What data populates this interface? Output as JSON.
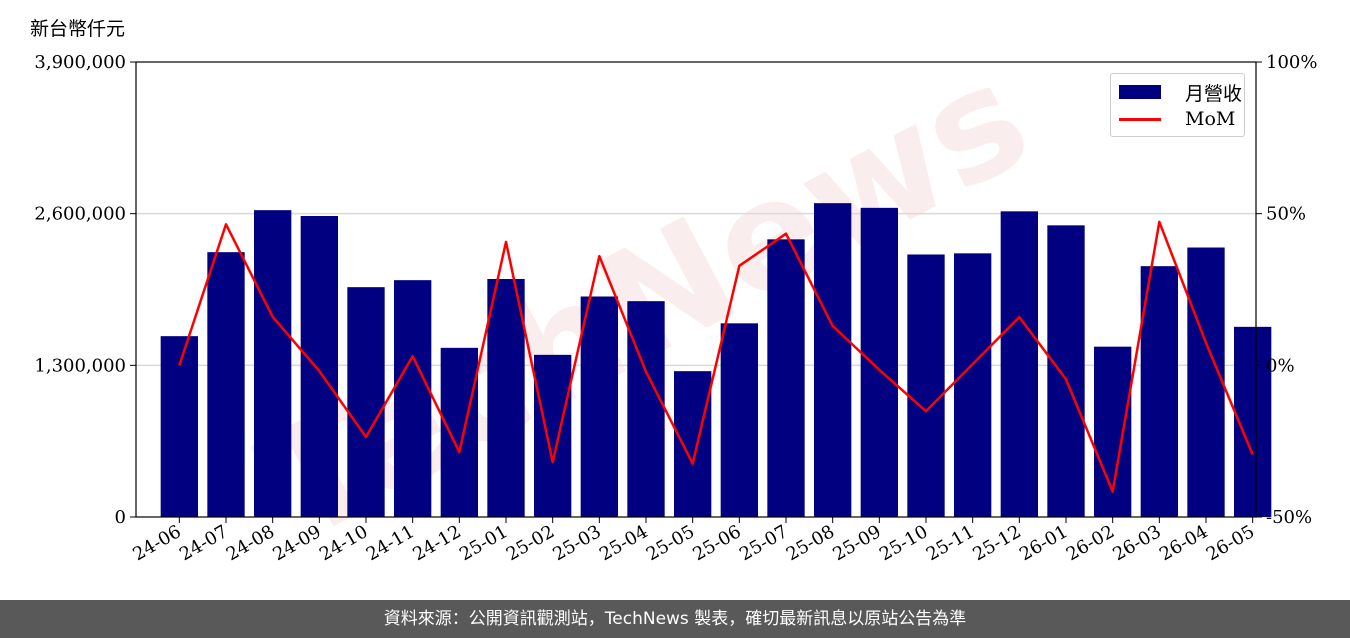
{
  "header": {
    "unit_label": "新台幣仟元"
  },
  "footer": {
    "text": "資料來源：公開資訊觀測站，TechNews 製表，確切最新訊息以原站公告為準"
  },
  "watermark": {
    "text": "TechNews"
  },
  "colors": {
    "bar": "#000080",
    "line": "#ff0000",
    "grid": "#d9d9d9"
  },
  "chart_data": {
    "type": "bar",
    "categories": [
      "24-06",
      "24-07",
      "24-08",
      "24-09",
      "24-10",
      "24-11",
      "24-12",
      "25-01",
      "25-02",
      "25-03",
      "25-04",
      "25-05",
      "25-06",
      "25-07",
      "25-08",
      "25-09",
      "25-10",
      "25-11",
      "25-12",
      "26-01",
      "26-02",
      "26-03",
      "26-04",
      "26-05"
    ],
    "series": [
      {
        "name": "月營收",
        "type": "bar",
        "axis": "left",
        "values": [
          1550000,
          2270000,
          2630000,
          2580000,
          1970000,
          2030000,
          1450000,
          2040000,
          1390000,
          1890000,
          1850000,
          1250000,
          1660000,
          2380000,
          2690000,
          2650000,
          2250000,
          2260000,
          2620000,
          2500000,
          1460000,
          2150000,
          2310000,
          1630000
        ]
      },
      {
        "name": "MoM",
        "type": "line",
        "axis": "right",
        "values": [
          0,
          46.5,
          16.0,
          -1.9,
          -23.6,
          3.0,
          -28.6,
          40.7,
          -31.9,
          36.0,
          -2.1,
          -32.4,
          32.8,
          43.4,
          13.0,
          -1.5,
          -15.1,
          0.4,
          15.9,
          -4.6,
          -41.6,
          47.3,
          7.4,
          -29.4
        ]
      }
    ],
    "ylim_left": [
      0,
      3900000
    ],
    "yticks_left": [
      "0",
      "1,300,000",
      "2,600,000",
      "3,900,000"
    ],
    "ylim_right": [
      -50,
      100
    ],
    "yticks_right": [
      "-50%",
      "0%",
      "50%",
      "100%"
    ],
    "grid": true,
    "legend_position": "top-right",
    "legend_labels": [
      "月營收",
      "MoM"
    ]
  }
}
